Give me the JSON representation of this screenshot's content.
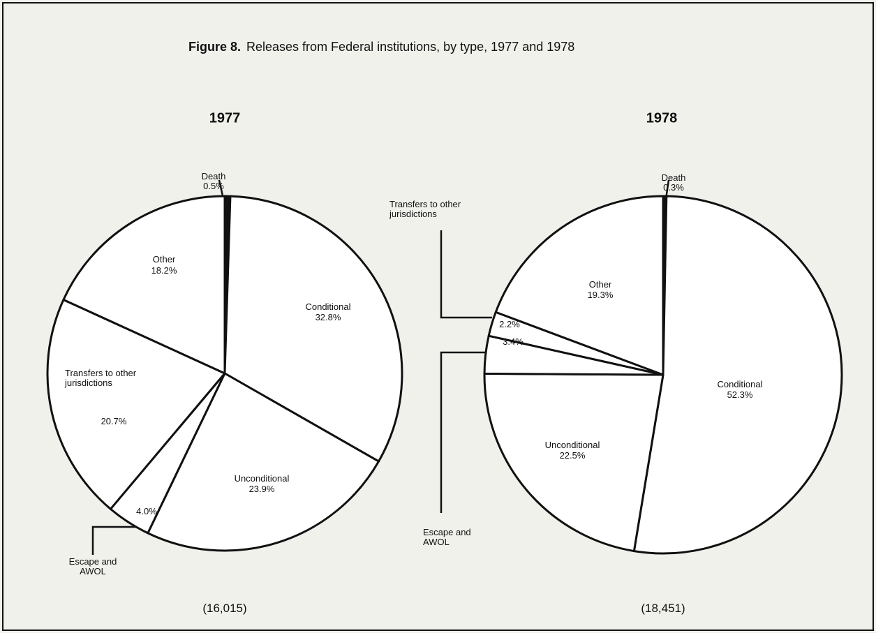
{
  "figure": {
    "label": "Figure 8.",
    "title": "Releases from Federal institutions, by type, 1977 and 1978"
  },
  "chart_data": [
    {
      "type": "pie",
      "title": "1977",
      "subtitle": "(16,015)",
      "color": "#ffffff",
      "categories": [
        "Death",
        "Conditional",
        "Unconditional",
        "Escape and AWOL",
        "Transfers to other jurisdictions",
        "Other"
      ],
      "values": [
        0.5,
        32.8,
        23.9,
        4.0,
        20.7,
        18.2
      ],
      "value_labels": [
        "0.5%",
        "32.8%",
        "23.9%",
        "4.0%",
        "20.7%",
        "18.2%"
      ]
    },
    {
      "type": "pie",
      "title": "1978",
      "subtitle": "(18,451)",
      "color": "#ffffff",
      "categories": [
        "Death",
        "Conditional",
        "Unconditional",
        "Escape and AWOL",
        "Transfers to other jurisdictions",
        "Other"
      ],
      "values": [
        0.3,
        52.3,
        22.5,
        3.4,
        2.2,
        19.3
      ],
      "value_labels": [
        "0.3%",
        "52.3%",
        "22.5%",
        "3.4%",
        "2.2%",
        "19.3%"
      ]
    }
  ]
}
